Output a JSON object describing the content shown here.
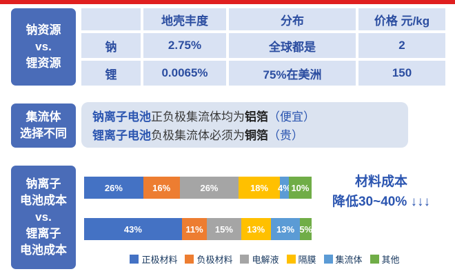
{
  "theme": {
    "accent_red": "#e01f1f",
    "sidebar_blue": "#4a6cb8",
    "table_cell_bg": "#d9e2f3",
    "table_text_blue": "#2b4da0",
    "panel_bg": "#dbe3f0",
    "note_blue": "#2b55b0"
  },
  "sections": {
    "resources": {
      "sidebar": [
        "钠资源",
        "vs.",
        "锂资源"
      ],
      "table": {
        "headers": [
          "",
          "地壳丰度",
          "分布",
          "价格 元/kg"
        ],
        "rows": [
          [
            "钠",
            "2.75%",
            "全球都是",
            "2"
          ],
          [
            "锂",
            "0.0065%",
            "75%在美洲",
            "150"
          ]
        ]
      }
    },
    "collector": {
      "sidebar": [
        "集流体",
        "选择不同"
      ],
      "lines": [
        {
          "segments": [
            {
              "text": "钠离子电池",
              "style": "blue-bold"
            },
            {
              "text": "正负极集流体均为",
              "style": "dark"
            },
            {
              "text": "铝箔",
              "style": "dark-bold"
            },
            {
              "text": "（便宜）",
              "style": "blue"
            }
          ]
        },
        {
          "segments": [
            {
              "text": "锂离子电池",
              "style": "blue-bold"
            },
            {
              "text": "负极集流体必须为",
              "style": "dark"
            },
            {
              "text": "铜箔",
              "style": "dark-bold"
            },
            {
              "text": "（贵）",
              "style": "blue"
            }
          ]
        }
      ]
    },
    "cost": {
      "sidebar": [
        "钠离子",
        "电池成本",
        "vs.",
        "锂离子",
        "电池成本"
      ]
    }
  },
  "chart_data": {
    "type": "bar",
    "subtype": "horizontal-stacked-100",
    "categories": [
      "钠离子电池成本",
      "锂离子电池成本"
    ],
    "series": [
      {
        "name": "正极材料",
        "color": "#4472c4",
        "values": [
          26,
          43
        ]
      },
      {
        "name": "负极材料",
        "color": "#ed7d31",
        "values": [
          16,
          11
        ]
      },
      {
        "name": "电解液",
        "color": "#a5a5a5",
        "values": [
          26,
          15
        ]
      },
      {
        "name": "隔膜",
        "color": "#ffc000",
        "values": [
          18,
          13
        ]
      },
      {
        "name": "集流体",
        "color": "#5b9bd5",
        "values": [
          4,
          13
        ]
      },
      {
        "name": "其他",
        "color": "#70ad47",
        "values": [
          10,
          5
        ]
      }
    ],
    "value_label_format": "percent",
    "legend_position": "bottom",
    "annotation_lines": [
      "材料成本",
      "降低30~40% ↓↓↓"
    ]
  }
}
